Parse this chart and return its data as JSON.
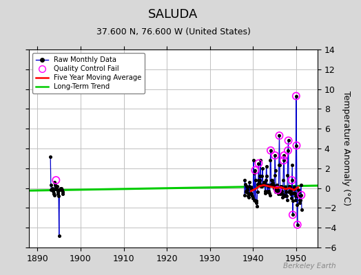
{
  "title": "SALUDA",
  "subtitle": "37.600 N, 76.600 W (United States)",
  "ylabel": "Temperature Anomaly (°C)",
  "watermark": "Berkeley Earth",
  "background_color": "#d8d8d8",
  "plot_bg_color": "#ffffff",
  "grid_color": "#c0c0c0",
  "xlim": [
    1888,
    1955
  ],
  "ylim": [
    -6,
    14
  ],
  "yticks": [
    -6,
    -4,
    -2,
    0,
    2,
    4,
    6,
    8,
    10,
    12,
    14
  ],
  "xticks": [
    1890,
    1900,
    1910,
    1920,
    1930,
    1940,
    1950
  ],
  "early_years": [
    1893.0,
    1893.1,
    1893.2,
    1893.3,
    1893.4,
    1893.5,
    1893.6,
    1893.7,
    1893.8,
    1893.9,
    1894.0,
    1894.1,
    1894.2,
    1894.3,
    1894.4,
    1894.5,
    1894.6,
    1894.7,
    1894.8,
    1894.9,
    1895.0,
    1895.1,
    1895.2,
    1895.3,
    1895.4,
    1895.5,
    1895.6,
    1895.7,
    1895.8,
    1895.9
  ],
  "early_values": [
    3.2,
    0.3,
    -0.2,
    -0.1,
    0.0,
    -0.2,
    -0.3,
    -0.5,
    -0.6,
    -0.7,
    0.6,
    0.3,
    0.1,
    -0.1,
    0.0,
    0.2,
    -0.2,
    -0.4,
    -0.6,
    -0.8,
    -4.8,
    -0.2,
    -0.15,
    -0.1,
    0.0,
    0.0,
    -0.1,
    -0.2,
    -0.4,
    -0.6
  ],
  "qc_early_years": [
    1894.3
  ],
  "qc_early_values": [
    0.8
  ],
  "main_years": [
    1938.0,
    1938.1,
    1938.2,
    1938.3,
    1938.4,
    1938.5,
    1938.6,
    1938.7,
    1938.8,
    1938.9,
    1939.0,
    1939.1,
    1939.2,
    1939.3,
    1939.4,
    1939.5,
    1939.6,
    1939.7,
    1939.8,
    1939.9,
    1940.0,
    1940.1,
    1940.2,
    1940.3,
    1940.4,
    1940.5,
    1940.6,
    1940.7,
    1940.8,
    1940.9,
    1941.0,
    1941.1,
    1941.2,
    1941.3,
    1941.4,
    1941.5,
    1941.6,
    1941.7,
    1941.8,
    1941.9,
    1942.0,
    1942.1,
    1942.2,
    1942.3,
    1942.4,
    1942.5,
    1942.6,
    1942.7,
    1942.8,
    1942.9,
    1943.0,
    1943.1,
    1943.2,
    1943.3,
    1943.4,
    1943.5,
    1943.6,
    1943.7,
    1943.8,
    1943.9,
    1944.0,
    1944.1,
    1944.2,
    1944.3,
    1944.4,
    1944.5,
    1944.6,
    1944.7,
    1944.8,
    1944.9,
    1945.0,
    1945.1,
    1945.2,
    1945.3,
    1945.4,
    1945.5,
    1945.6,
    1945.7,
    1945.8,
    1945.9,
    1946.0,
    1946.1,
    1946.2,
    1946.3,
    1946.4,
    1946.5,
    1946.6,
    1946.7,
    1946.8,
    1946.9,
    1947.0,
    1947.1,
    1947.2,
    1947.3,
    1947.4,
    1947.5,
    1947.6,
    1947.7,
    1947.8,
    1947.9,
    1948.0,
    1948.1,
    1948.2,
    1948.3,
    1948.4,
    1948.5,
    1948.6,
    1948.7,
    1948.8,
    1948.9,
    1949.0,
    1949.1,
    1949.2,
    1949.3,
    1949.4,
    1949.5,
    1949.6,
    1949.7,
    1949.8,
    1949.9,
    1950.0,
    1950.1,
    1950.2,
    1950.3,
    1950.4,
    1950.5,
    1950.6,
    1950.7,
    1950.8,
    1950.9,
    1951.0,
    1951.1,
    1951.2,
    1951.3
  ],
  "main_values": [
    -0.7,
    0.8,
    0.4,
    -0.4,
    -0.3,
    0.2,
    0.1,
    -0.2,
    -0.5,
    -0.8,
    -0.9,
    0.6,
    0.2,
    -0.6,
    -0.5,
    0.1,
    -0.1,
    -0.6,
    -0.8,
    -1.0,
    -1.0,
    2.8,
    1.5,
    -1.2,
    -1.3,
    1.8,
    0.8,
    -1.3,
    -1.5,
    -1.8,
    -0.4,
    0.4,
    0.8,
    2.5,
    0.5,
    0.8,
    1.2,
    2.8,
    0.2,
    0.3,
    0.2,
    1.2,
    2.0,
    0.4,
    0.3,
    0.6,
    0.5,
    0.4,
    -0.3,
    -0.5,
    0.8,
    2.2,
    1.2,
    -0.4,
    -0.3,
    0.3,
    0.2,
    -0.3,
    -0.5,
    -0.7,
    2.8,
    3.8,
    0.8,
    0.4,
    0.3,
    0.8,
    0.5,
    0.3,
    0.2,
    0.0,
    1.3,
    3.3,
    1.8,
    -0.4,
    -0.2,
    0.3,
    0.2,
    -0.2,
    -0.4,
    -0.6,
    2.3,
    5.3,
    2.3,
    -0.6,
    -0.5,
    0.2,
    0.1,
    -0.3,
    -0.6,
    -0.9,
    0.8,
    2.8,
    3.3,
    -0.8,
    -0.7,
    0.1,
    0.0,
    -0.4,
    -0.8,
    -1.2,
    1.3,
    3.8,
    4.8,
    -0.4,
    -0.3,
    0.2,
    0.1,
    -0.3,
    -0.6,
    -1.0,
    0.8,
    2.3,
    -2.7,
    -1.3,
    -0.5,
    0.1,
    -0.1,
    -0.5,
    -0.8,
    -1.2,
    9.3,
    4.3,
    -1.7,
    -3.7,
    -0.8,
    -0.2,
    -0.4,
    -0.8,
    -1.2,
    -1.5,
    -1.2,
    0.3,
    -0.7,
    -2.2
  ],
  "qc_main_years": [
    1940.5,
    1941.3,
    1944.1,
    1945.1,
    1945.7,
    1946.1,
    1947.1,
    1947.2,
    1948.1,
    1948.2,
    1949.0,
    1949.2,
    1950.0,
    1950.1,
    1950.3,
    1951.2
  ],
  "qc_main_values": [
    1.8,
    2.5,
    3.8,
    3.3,
    -0.2,
    5.3,
    2.8,
    3.3,
    3.8,
    4.8,
    0.8,
    -2.7,
    9.3,
    4.3,
    -3.7,
    -0.7
  ],
  "moving_avg_years": [
    1939.5,
    1940.5,
    1941.5,
    1942.5,
    1943.5,
    1944.5,
    1945.5,
    1946.5,
    1947.5,
    1948.5,
    1949.5,
    1950.5
  ],
  "moving_avg_values": [
    -0.3,
    -0.1,
    0.2,
    0.3,
    0.2,
    0.1,
    0.0,
    0.1,
    -0.1,
    0.0,
    -0.2,
    0.1
  ],
  "trend_years": [
    1888,
    1955
  ],
  "trend_values": [
    -0.25,
    0.25
  ],
  "line_color": "#0000cc",
  "dot_color": "#000000",
  "qc_color": "#ff00ff",
  "moving_avg_color": "#ff0000",
  "trend_color": "#00cc00",
  "title_fontsize": 13,
  "subtitle_fontsize": 9,
  "tick_fontsize": 9,
  "ylabel_fontsize": 9
}
